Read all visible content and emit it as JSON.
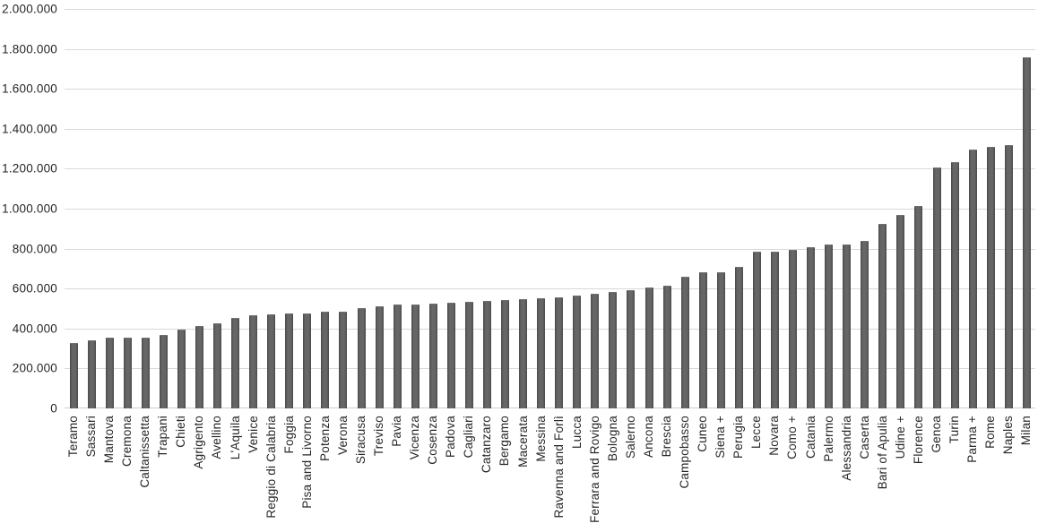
{
  "chart_data": {
    "type": "bar",
    "title": "",
    "xlabel": "",
    "ylabel": "",
    "ylim": [
      0,
      2000000
    ],
    "y_tick_interval": 200000,
    "y_tick_labels_bottom_to_top": [
      "0",
      "200.000",
      "400.000",
      "600.000",
      "800.000",
      "1.000.000",
      "1.200.000",
      "1.400.000",
      "1.600.000",
      "1.800.000",
      "2.000.000"
    ],
    "grid": true,
    "legend": false,
    "categories": [
      "Teramo",
      "Sassari",
      "Mantova",
      "Cremona",
      "Caltanissetta",
      "Trapani",
      "Chieti",
      "Agrigento",
      "Avellino",
      "L'Aquila",
      "Venice",
      "Reggio di Calabria",
      "Foggia",
      "Pisa and Livorno",
      "Potenza",
      "Verona",
      "Siracusa",
      "Treviso",
      "Pavia",
      "Vicenza",
      "Cosenza",
      "Padova",
      "Cagliari",
      "Catanzaro",
      "Bergamo",
      "Macerata",
      "Messina",
      "Ravenna and Forlì",
      "Lucca",
      "Ferrara and Rovigo",
      "Bologna",
      "Salerno",
      "Ancona",
      "Brescia",
      "Campobasso",
      "Cuneo",
      "Siena +",
      "Perugia",
      "Lecce",
      "Novara",
      "Como +",
      "Catania",
      "Palermo",
      "Alessandria",
      "Caserta",
      "Bari of Apulia",
      "Udine +",
      "Florence",
      "Genoa",
      "Turin",
      "Parma +",
      "Rome",
      "Naples",
      "Milan"
    ],
    "values": [
      325000,
      337000,
      350000,
      350000,
      349000,
      362000,
      390000,
      408000,
      420000,
      448000,
      463000,
      465000,
      470000,
      471000,
      479000,
      481000,
      500000,
      509000,
      514000,
      517000,
      521000,
      524000,
      530000,
      532000,
      540000,
      541000,
      549000,
      553000,
      559000,
      571000,
      580000,
      587000,
      603000,
      609000,
      657000,
      675000,
      679000,
      706000,
      779000,
      781000,
      788000,
      803000,
      817000,
      818000,
      833000,
      918000,
      963000,
      1008000,
      1203000,
      1228000,
      1291000,
      1305000,
      1316000,
      1752000
    ]
  },
  "colors": {
    "bar": "#595959",
    "gridline": "#d9d9d9",
    "axis_text": "#262626",
    "background": "#ffffff"
  }
}
